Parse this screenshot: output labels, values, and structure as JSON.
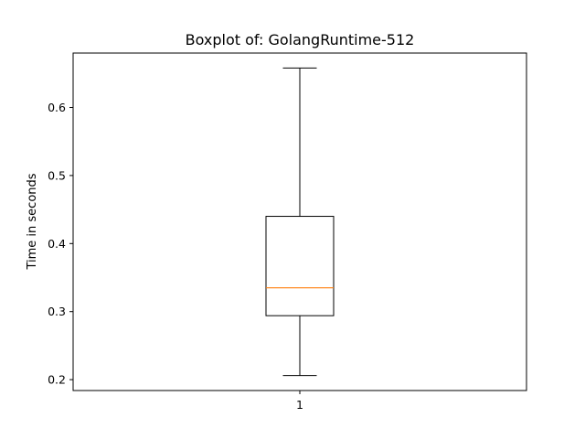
{
  "chart_data": {
    "type": "boxplot",
    "title": "Boxplot of: GolangRuntime-512",
    "xlabel": "",
    "ylabel": "Time in seconds",
    "categories": [
      "1"
    ],
    "boxes": [
      {
        "category": "1",
        "whisker_low": 0.206,
        "q1": 0.294,
        "median": 0.335,
        "q3": 0.44,
        "whisker_high": 0.658
      }
    ],
    "ylim": [
      0.184,
      0.68
    ],
    "yticks": [
      0.2,
      0.3,
      0.4,
      0.5,
      0.6
    ],
    "ytick_labels": [
      "0.2",
      "0.3",
      "0.4",
      "0.5",
      "0.6"
    ],
    "grid": false,
    "colors": {
      "box": "#000000",
      "median": "#ff7f0e"
    }
  }
}
